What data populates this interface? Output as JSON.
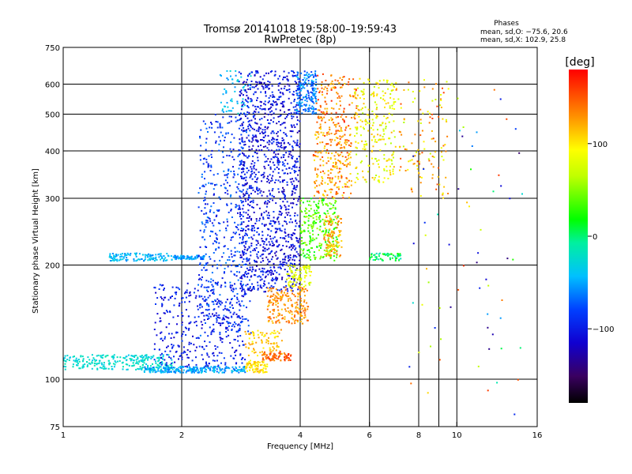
{
  "chart_data": {
    "type": "scatter",
    "title": "Tromsø 20141018 19:58:00–19:59:43",
    "subtitle": "RwPretec (8p)",
    "xlabel": "Frequency [MHz]",
    "ylabel": "Stationary phase Virtual Height [km]",
    "x_scale": "log2",
    "y_scale": "log",
    "xlim": [
      1,
      16
    ],
    "ylim": [
      75,
      750
    ],
    "x_ticks": [
      1,
      2,
      4,
      6,
      8,
      10,
      16
    ],
    "x_tick_labels": [
      "1",
      "2",
      "4",
      "6",
      "8",
      "10",
      "16"
    ],
    "x_gridlines": [
      2,
      4,
      6,
      8,
      9,
      10
    ],
    "y_ticks": [
      75,
      100,
      200,
      300,
      400,
      500,
      600,
      750
    ],
    "y_tick_labels": [
      "75",
      "100",
      "200",
      "300",
      "400",
      "500",
      "600",
      "750"
    ],
    "y_gridlines": [
      100,
      200,
      300,
      400,
      500,
      600
    ],
    "grid": true,
    "legend_position": "top-right",
    "legend_lines": [
      "Phases",
      "mean, sd,O: −75.6, 20.6",
      "mean, sd,X: 102.9, 25.8"
    ],
    "colorbar": {
      "label": "[deg]",
      "ticks": [
        -100,
        0,
        100
      ],
      "tick_labels": [
        "−100",
        "0",
        "100"
      ],
      "range": [
        -180,
        180
      ],
      "colormap": "rainbow"
    },
    "point_groups": [
      {
        "f": [
          1.0,
          1.9
        ],
        "h": [
          106,
          116
        ],
        "phase": [
          -40,
          -10
        ],
        "n": 260
      },
      {
        "f": [
          1.6,
          2.9
        ],
        "h": [
          104,
          108
        ],
        "phase": [
          -70,
          -30
        ],
        "n": 240
      },
      {
        "f": [
          1.7,
          2.9
        ],
        "h": [
          108,
          180
        ],
        "phase": [
          -120,
          -80
        ],
        "n": 360
      },
      {
        "f": [
          1.3,
          1.9
        ],
        "h": [
          205,
          215
        ],
        "phase": [
          -60,
          -30
        ],
        "n": 120
      },
      {
        "f": [
          1.9,
          2.3
        ],
        "h": [
          207,
          212
        ],
        "phase": [
          -70,
          -40
        ],
        "n": 90
      },
      {
        "f": [
          2.2,
          3.0
        ],
        "h": [
          130,
          500
        ],
        "phase": [
          -110,
          -60
        ],
        "n": 520
      },
      {
        "f": [
          2.5,
          3.0
        ],
        "h": [
          500,
          650
        ],
        "phase": [
          -60,
          -20
        ],
        "n": 60
      },
      {
        "f": [
          2.8,
          4.0
        ],
        "h": [
          170,
          650
        ],
        "phase": [
          -130,
          -80
        ],
        "n": 1200
      },
      {
        "f": [
          2.9,
          3.3
        ],
        "h": [
          104,
          112
        ],
        "phase": [
          90,
          120
        ],
        "n": 80
      },
      {
        "f": [
          2.9,
          3.6
        ],
        "h": [
          115,
          135
        ],
        "phase": [
          90,
          130
        ],
        "n": 90
      },
      {
        "f": [
          3.2,
          3.8
        ],
        "h": [
          112,
          118
        ],
        "phase": [
          130,
          170
        ],
        "n": 70
      },
      {
        "f": [
          3.3,
          4.2
        ],
        "h": [
          140,
          175
        ],
        "phase": [
          110,
          150
        ],
        "n": 200
      },
      {
        "f": [
          3.7,
          4.3
        ],
        "h": [
          175,
          200
        ],
        "phase": [
          60,
          100
        ],
        "n": 90
      },
      {
        "f": [
          3.9,
          4.4
        ],
        "h": [
          500,
          650
        ],
        "phase": [
          -90,
          -40
        ],
        "n": 180
      },
      {
        "f": [
          4.0,
          5.0
        ],
        "h": [
          205,
          300
        ],
        "phase": [
          10,
          60
        ],
        "n": 260
      },
      {
        "f": [
          4.6,
          5.1
        ],
        "h": [
          210,
          270
        ],
        "phase": [
          100,
          150
        ],
        "n": 110
      },
      {
        "f": [
          4.3,
          5.4
        ],
        "h": [
          300,
          460
        ],
        "phase": [
          100,
          160
        ],
        "n": 240
      },
      {
        "f": [
          4.4,
          5.6
        ],
        "h": [
          460,
          640
        ],
        "phase": [
          110,
          170
        ],
        "n": 140
      },
      {
        "f": [
          5.5,
          7.0
        ],
        "h": [
          330,
          620
        ],
        "phase": [
          60,
          120
        ],
        "n": 240
      },
      {
        "f": [
          6.0,
          7.2
        ],
        "h": [
          205,
          215
        ],
        "phase": [
          -20,
          30
        ],
        "n": 60
      },
      {
        "f": [
          7.0,
          9.5
        ],
        "h": [
          300,
          620
        ],
        "phase": [
          60,
          160
        ],
        "n": 120
      },
      {
        "f": [
          7.5,
          15.0
        ],
        "h": [
          80,
          640
        ],
        "phase": [
          -150,
          160
        ],
        "n": 70
      }
    ]
  }
}
